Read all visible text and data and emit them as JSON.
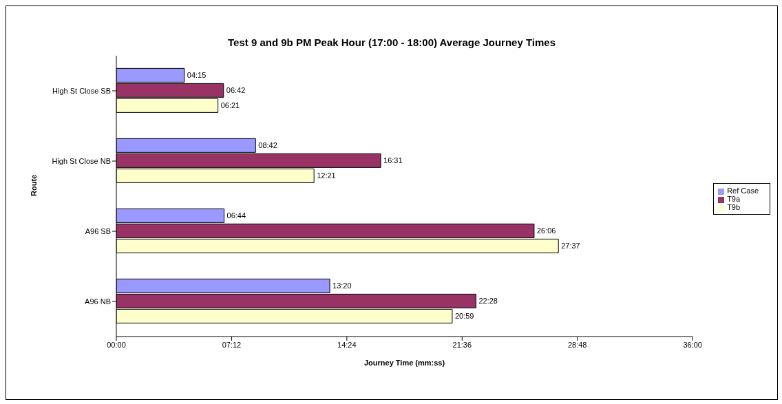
{
  "chart_data": {
    "type": "bar",
    "orientation": "horizontal",
    "title": "Test 9 and 9b PM Peak Hour (17:00 - 18:00) Average Journey Times",
    "xlabel": "Journey Time (mm:ss)",
    "ylabel": "Route",
    "categories": [
      "High St Close SB",
      "High St Close NB",
      "A96 SB",
      "A96 NB"
    ],
    "series": [
      {
        "name": "Ref Case",
        "color": "#9999ff",
        "values": [
          255,
          522,
          404,
          800
        ],
        "value_labels": [
          "04:15",
          "08:42",
          "06:44",
          "13:20"
        ]
      },
      {
        "name": "T9a",
        "color": "#993366",
        "values": [
          402,
          991,
          1566,
          1348
        ],
        "value_labels": [
          "06:42",
          "16:31",
          "26:06",
          "22:28"
        ]
      },
      {
        "name": "T9b",
        "color": "#ffffcc",
        "values": [
          381,
          741,
          1657,
          1259
        ],
        "value_labels": [
          "06:21",
          "12:21",
          "27:37",
          "20:59"
        ]
      }
    ],
    "xlim": [
      0,
      2160
    ],
    "xticks": [
      {
        "value": 0,
        "label": "00:00"
      },
      {
        "value": 432,
        "label": "07:12"
      },
      {
        "value": 864,
        "label": "14:24"
      },
      {
        "value": 1296,
        "label": "21:36"
      },
      {
        "value": 1728,
        "label": "28:48"
      },
      {
        "value": 2160,
        "label": "36:00"
      }
    ],
    "grid": false,
    "legend": "right"
  }
}
